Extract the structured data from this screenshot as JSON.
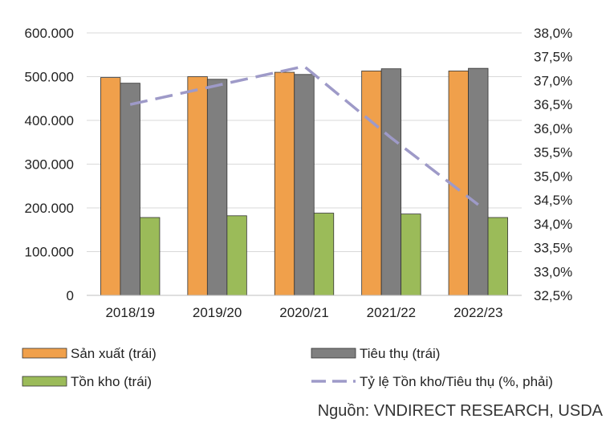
{
  "chart_data": {
    "type": "bar",
    "categories": [
      "2018/19",
      "2019/20",
      "2020/21",
      "2021/22",
      "2022/23"
    ],
    "series": [
      {
        "name": "Sản xuất (trái)",
        "axis": "left",
        "kind": "bar",
        "color": "#F0A04B",
        "values": [
          498000,
          500000,
          510000,
          513000,
          513000
        ]
      },
      {
        "name": "Tiêu thụ (trái)",
        "axis": "left",
        "kind": "bar",
        "color": "#7F7F7F",
        "values": [
          485000,
          494000,
          505000,
          518000,
          519000
        ]
      },
      {
        "name": "Tồn kho (trái)",
        "axis": "left",
        "kind": "bar",
        "color": "#9BBB59",
        "values": [
          178000,
          182000,
          188000,
          186000,
          178000
        ]
      },
      {
        "name": "Tỷ lệ Tồn kho/Tiêu thụ (%, phải)",
        "axis": "right",
        "kind": "line",
        "style": "dashed",
        "color": "#9E9AC8",
        "values": [
          36.5,
          36.9,
          37.3,
          35.8,
          34.4
        ]
      }
    ],
    "y_left": {
      "min": 0,
      "max": 600000,
      "step": 100000,
      "tick_labels": [
        "0",
        "100.000",
        "200.000",
        "300.000",
        "400.000",
        "500.000",
        "600.000"
      ]
    },
    "y_right": {
      "min": 32.5,
      "max": 38.0,
      "step": 0.5,
      "tick_labels": [
        "32,5%",
        "33,0%",
        "33,5%",
        "34,0%",
        "34,5%",
        "35,0%",
        "35,5%",
        "36,0%",
        "36,5%",
        "37,0%",
        "37,5%",
        "38,0%"
      ]
    },
    "grid": true,
    "legend_position": "bottom"
  },
  "source_text": "Nguồn: VNDIRECT RESEARCH, USDA"
}
